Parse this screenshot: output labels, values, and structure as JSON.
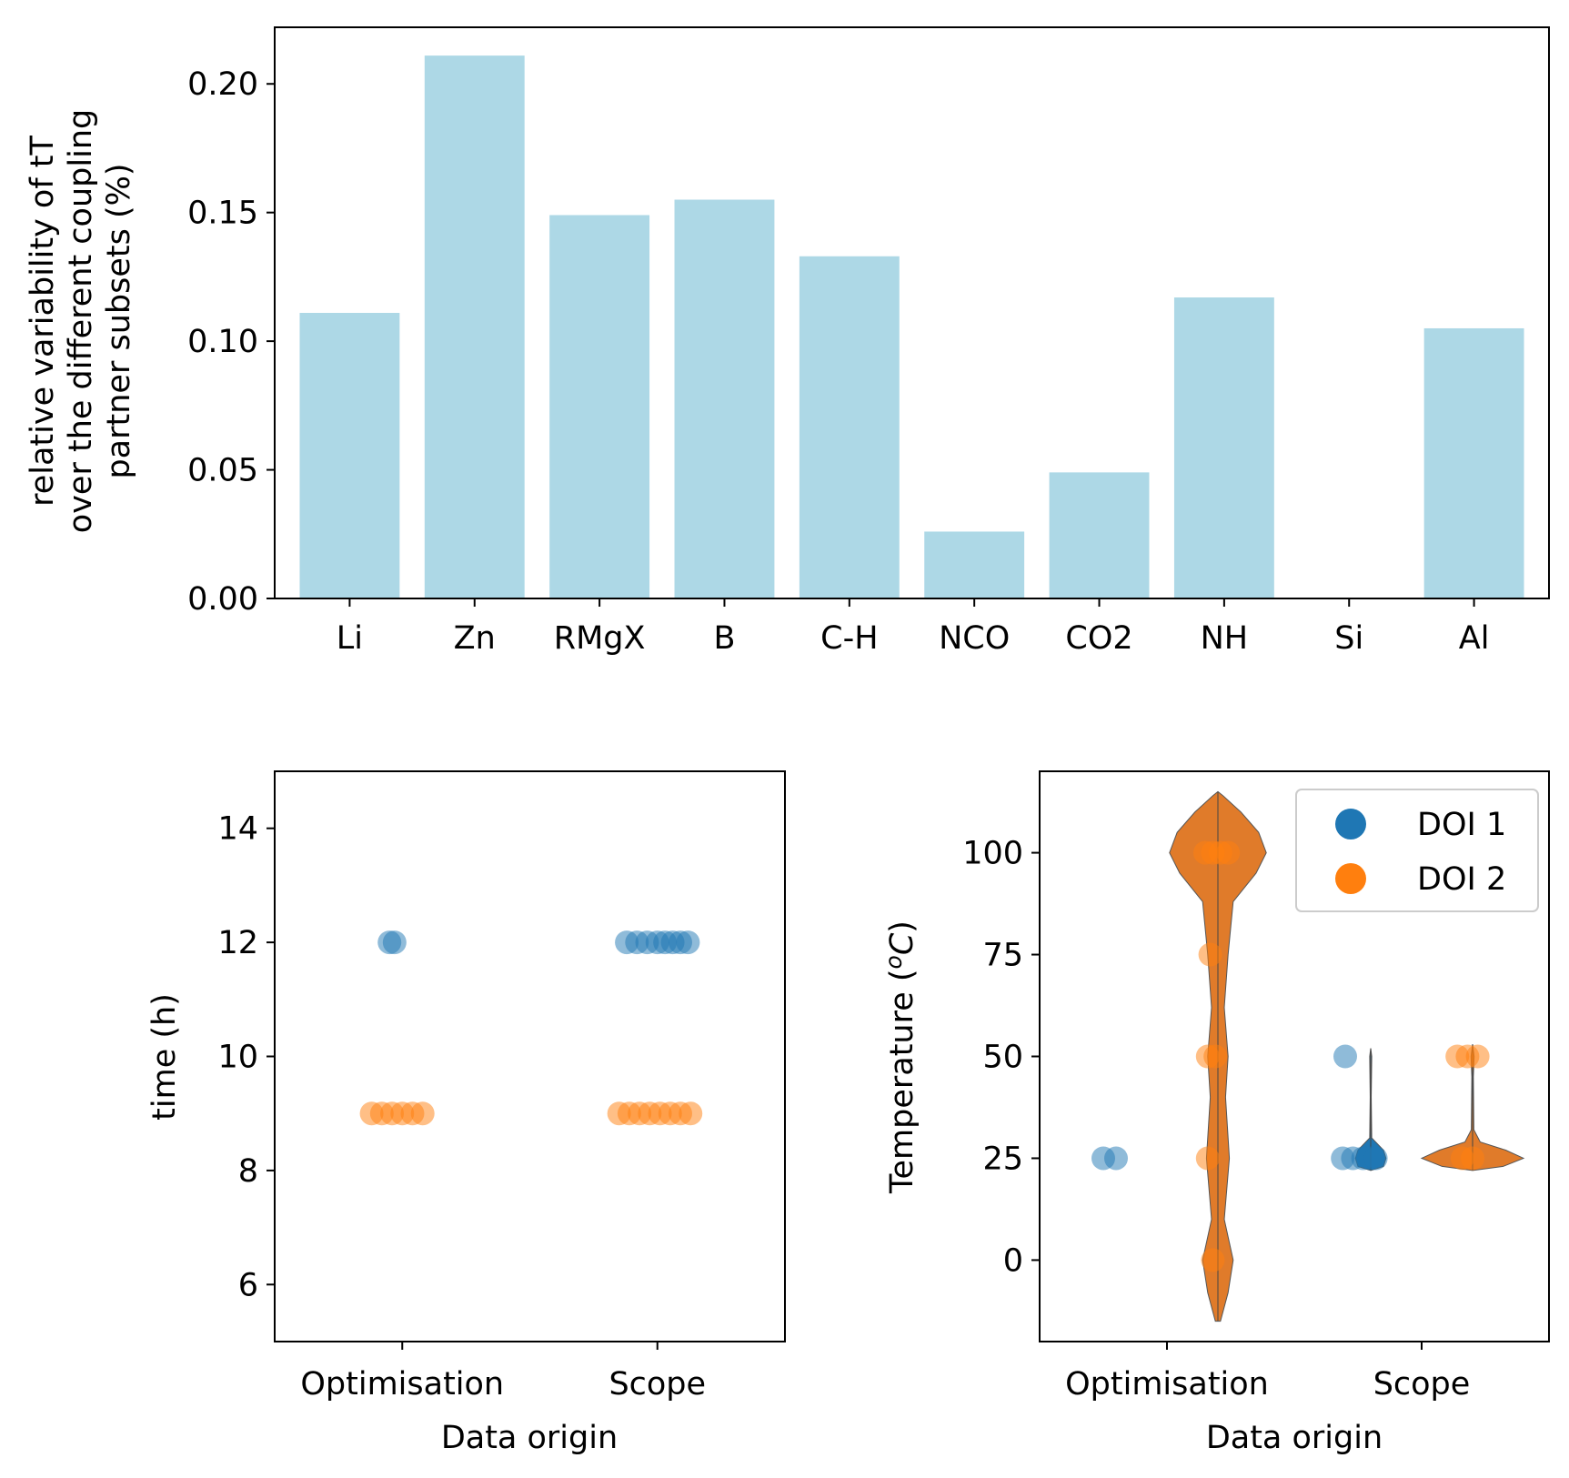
{
  "colors": {
    "bar": "#add8e6",
    "doi1": "#1f77b4",
    "doi2": "#ff7f0e",
    "violin": "#e07b2a"
  },
  "chart_data": [
    {
      "type": "bar",
      "categories": [
        "Li",
        "Zn",
        "RMgX",
        "B",
        "C-H",
        "NCO",
        "CO2",
        "NH",
        "Si",
        "Al"
      ],
      "values": [
        0.111,
        0.211,
        0.149,
        0.155,
        0.133,
        0.026,
        0.049,
        0.117,
        0.0,
        0.105
      ],
      "ylabel_lines": [
        "relative variability of tT",
        "over the different coupling",
        "partner subsets (%)"
      ],
      "ylim": [
        0,
        0.222
      ],
      "yticks": [
        "0.00",
        "0.05",
        "0.10",
        "0.15",
        "0.20"
      ],
      "ytick_values": [
        0,
        0.05,
        0.1,
        0.15,
        0.2
      ]
    },
    {
      "type": "scatter",
      "categories": [
        "Optimisation",
        "Scope"
      ],
      "xlabel": "Data origin",
      "ylabel": "time (h)",
      "ylim": [
        5,
        15
      ],
      "yticks": [
        "6",
        "8",
        "10",
        "12",
        "14"
      ],
      "ytick_values": [
        6,
        8,
        10,
        12,
        14
      ],
      "series": [
        {
          "name": "DOI 1",
          "points": [
            {
              "x": "Optimisation",
              "y": 12,
              "jitter": -0.05
            },
            {
              "x": "Optimisation",
              "y": 12,
              "jitter": -0.03
            },
            {
              "x": "Scope",
              "y": 12,
              "jitter": -0.12
            },
            {
              "x": "Scope",
              "y": 12,
              "jitter": -0.08
            },
            {
              "x": "Scope",
              "y": 12,
              "jitter": -0.04
            },
            {
              "x": "Scope",
              "y": 12,
              "jitter": 0.0
            },
            {
              "x": "Scope",
              "y": 12,
              "jitter": 0.03
            },
            {
              "x": "Scope",
              "y": 12,
              "jitter": 0.06
            },
            {
              "x": "Scope",
              "y": 12,
              "jitter": 0.09
            },
            {
              "x": "Scope",
              "y": 12,
              "jitter": 0.12
            }
          ]
        },
        {
          "name": "DOI 2",
          "points": [
            {
              "x": "Optimisation",
              "y": 9,
              "jitter": -0.12
            },
            {
              "x": "Optimisation",
              "y": 9,
              "jitter": -0.08
            },
            {
              "x": "Optimisation",
              "y": 9,
              "jitter": -0.04
            },
            {
              "x": "Optimisation",
              "y": 9,
              "jitter": 0.0
            },
            {
              "x": "Optimisation",
              "y": 9,
              "jitter": 0.04
            },
            {
              "x": "Optimisation",
              "y": 9,
              "jitter": 0.08
            },
            {
              "x": "Scope",
              "y": 9,
              "jitter": -0.15
            },
            {
              "x": "Scope",
              "y": 9,
              "jitter": -0.11
            },
            {
              "x": "Scope",
              "y": 9,
              "jitter": -0.07
            },
            {
              "x": "Scope",
              "y": 9,
              "jitter": -0.03
            },
            {
              "x": "Scope",
              "y": 9,
              "jitter": 0.01
            },
            {
              "x": "Scope",
              "y": 9,
              "jitter": 0.05
            },
            {
              "x": "Scope",
              "y": 9,
              "jitter": 0.09
            },
            {
              "x": "Scope",
              "y": 9,
              "jitter": 0.13
            }
          ]
        }
      ]
    },
    {
      "type": "scatter",
      "overlay": "violin",
      "categories": [
        "Optimisation",
        "Scope"
      ],
      "xlabel": "Data origin",
      "ylabel": "Temperature (",
      "ylabel_sup": "o",
      "ylabel_unit": "C",
      "ylabel_close": ")",
      "ylim": [
        -20,
        120
      ],
      "yticks": [
        "0",
        "25",
        "50",
        "75",
        "100"
      ],
      "ytick_values": [
        0,
        25,
        50,
        75,
        100
      ],
      "legend": {
        "position": "top-right",
        "entries": [
          "DOI 1",
          "DOI 2"
        ]
      },
      "series": [
        {
          "name": "DOI 1",
          "points": [
            {
              "x": "Optimisation",
              "y": 25,
              "offset": -0.25
            },
            {
              "x": "Optimisation",
              "y": 25,
              "offset": -0.2
            },
            {
              "x": "Scope",
              "y": 50,
              "offset": -0.3
            },
            {
              "x": "Scope",
              "y": 25,
              "offset": -0.31
            },
            {
              "x": "Scope",
              "y": 25,
              "offset": -0.27
            },
            {
              "x": "Scope",
              "y": 25,
              "offset": -0.23
            },
            {
              "x": "Scope",
              "y": 25,
              "offset": -0.2
            },
            {
              "x": "Scope",
              "y": 25,
              "offset": -0.18
            }
          ]
        },
        {
          "name": "DOI 2",
          "points": [
            {
              "x": "Optimisation",
              "y": 100,
              "offset": 0.15
            },
            {
              "x": "Optimisation",
              "y": 100,
              "offset": 0.18
            },
            {
              "x": "Optimisation",
              "y": 100,
              "offset": 0.21
            },
            {
              "x": "Optimisation",
              "y": 100,
              "offset": 0.24
            },
            {
              "x": "Optimisation",
              "y": 75,
              "offset": 0.17
            },
            {
              "x": "Optimisation",
              "y": 50,
              "offset": 0.16
            },
            {
              "x": "Optimisation",
              "y": 50,
              "offset": 0.19
            },
            {
              "x": "Optimisation",
              "y": 25,
              "offset": 0.16
            },
            {
              "x": "Optimisation",
              "y": 0,
              "offset": 0.18
            },
            {
              "x": "Scope",
              "y": 50,
              "offset": 0.14
            },
            {
              "x": "Scope",
              "y": 50,
              "offset": 0.18
            },
            {
              "x": "Scope",
              "y": 50,
              "offset": 0.22
            },
            {
              "x": "Scope",
              "y": 25,
              "offset": 0.16
            },
            {
              "x": "Scope",
              "y": 25,
              "offset": 0.2
            }
          ]
        }
      ],
      "violins": [
        {
          "series": "DOI 2",
          "x": "Optimisation",
          "offset": 0.2,
          "profile": [
            [
              -15,
              0.01
            ],
            [
              -8,
              0.04
            ],
            [
              0,
              0.06
            ],
            [
              10,
              0.025
            ],
            [
              25,
              0.045
            ],
            [
              40,
              0.03
            ],
            [
              50,
              0.04
            ],
            [
              62,
              0.025
            ],
            [
              75,
              0.04
            ],
            [
              88,
              0.06
            ],
            [
              95,
              0.15
            ],
            [
              100,
              0.19
            ],
            [
              105,
              0.16
            ],
            [
              110,
              0.09
            ],
            [
              114,
              0.02
            ],
            [
              115,
              0.0
            ]
          ]
        },
        {
          "series": "DOI 1",
          "x": "Scope",
          "offset": -0.2,
          "profile": [
            [
              22,
              0.0
            ],
            [
              23,
              0.05
            ],
            [
              25,
              0.06
            ],
            [
              27,
              0.05
            ],
            [
              30,
              0.004
            ],
            [
              40,
              0.002
            ],
            [
              50,
              0.004
            ],
            [
              52,
              0.0
            ]
          ]
        },
        {
          "series": "DOI 2",
          "x": "Scope",
          "offset": 0.2,
          "profile": [
            [
              22,
              0.0
            ],
            [
              23,
              0.12
            ],
            [
              25,
              0.2
            ],
            [
              27,
              0.13
            ],
            [
              29,
              0.03
            ],
            [
              32,
              0.005
            ],
            [
              45,
              0.003
            ],
            [
              50,
              0.006
            ],
            [
              53,
              0.0
            ]
          ]
        }
      ]
    }
  ]
}
